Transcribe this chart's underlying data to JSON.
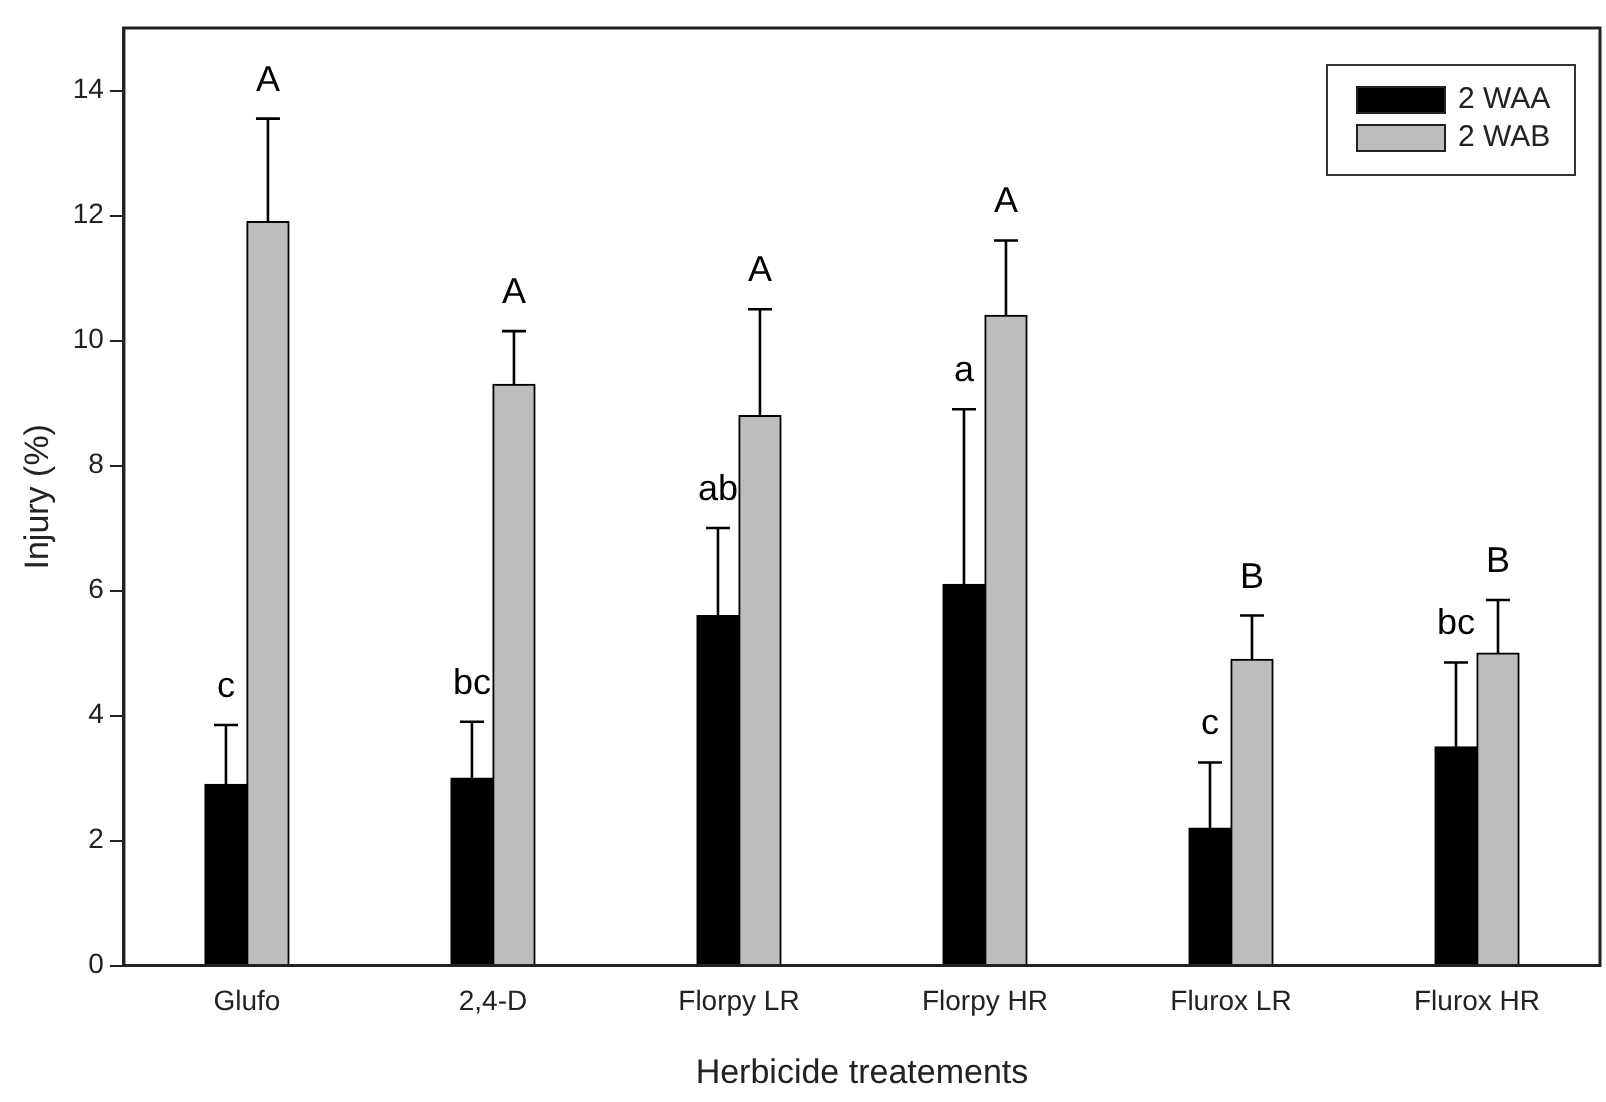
{
  "chart_data": {
    "type": "bar",
    "xlabel": "Herbicide treatements",
    "ylabel": "Injury (%)",
    "categories": [
      "Glufo",
      "2,4-D",
      "Florpy LR",
      "Florpy HR",
      "Flurox LR",
      "Flurox HR"
    ],
    "series": [
      {
        "name": "2 WAA",
        "color": "#000000",
        "values": [
          2.9,
          3.0,
          5.6,
          6.1,
          2.2,
          3.5
        ],
        "errors": [
          [
            2.9,
            3.85
          ],
          [
            3.0,
            3.9
          ],
          [
            5.6,
            7.0
          ],
          [
            6.1,
            8.9
          ],
          [
            2.2,
            3.25
          ],
          [
            3.5,
            4.85
          ]
        ]
      },
      {
        "name": "2 WAB",
        "color": "#bdbdbd",
        "values": [
          11.9,
          9.3,
          8.8,
          10.4,
          4.9,
          5.0
        ],
        "errors": [
          [
            11.9,
            13.55
          ],
          [
            9.3,
            10.15
          ],
          [
            8.8,
            10.5
          ],
          [
            10.4,
            11.6
          ],
          [
            4.9,
            5.6
          ],
          [
            5.0,
            5.85
          ]
        ]
      }
    ],
    "ylim": [
      0,
      15
    ],
    "yticks": [
      0,
      2,
      4,
      6,
      8,
      10,
      12,
      14
    ],
    "grid": false,
    "legend": "top right",
    "annotations": [
      "c",
      "A",
      "bc",
      "A",
      "ab",
      "A",
      "a",
      "A",
      "c",
      "B",
      "bc",
      "B"
    ]
  }
}
